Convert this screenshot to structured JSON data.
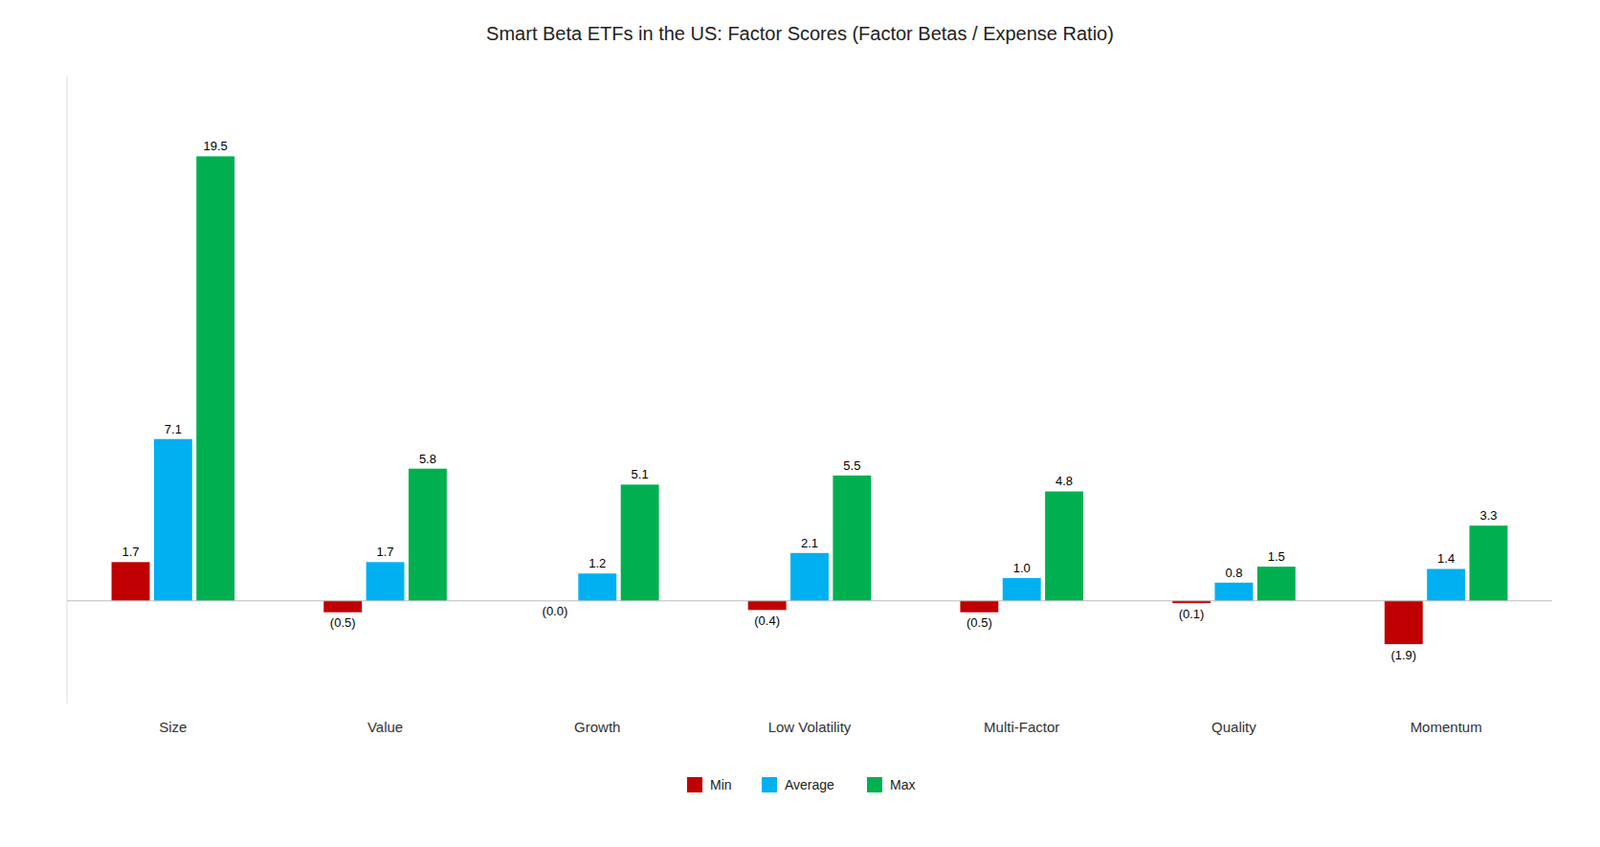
{
  "chart_data": {
    "type": "bar",
    "title": "Smart Beta ETFs in the US: Factor Scores (Factor Betas / Expense Ratio)",
    "categories": [
      "Size",
      "Value",
      "Growth",
      "Low Volatility",
      "Multi-Factor",
      "Quality",
      "Momentum"
    ],
    "series": [
      {
        "name": "Min",
        "color": "#C00000",
        "values": [
          1.7,
          -0.5,
          -0.0,
          -0.4,
          -0.5,
          -0.1,
          -1.9
        ],
        "value_labels": [
          "1.7",
          "(0.5)",
          "(0.0)",
          "(0.4)",
          "(0.5)",
          "(0.1)",
          "(1.9)"
        ]
      },
      {
        "name": "Average",
        "color": "#00B0F0",
        "values": [
          7.1,
          1.7,
          1.2,
          2.1,
          1.0,
          0.8,
          1.4
        ],
        "value_labels": [
          "7.1",
          "1.7",
          "1.2",
          "2.1",
          "1.0",
          "0.8",
          "1.4"
        ]
      },
      {
        "name": "Max",
        "color": "#00B050",
        "values": [
          19.5,
          5.8,
          5.1,
          5.5,
          4.8,
          1.5,
          3.3
        ],
        "value_labels": [
          "19.5",
          "5.8",
          "5.1",
          "5.5",
          "4.8",
          "1.5",
          "3.3"
        ]
      }
    ],
    "ylim": [
      -4.5,
      23.0
    ],
    "grid": false,
    "legend": "bottom",
    "data_labels": true,
    "tick_labels": "x"
  }
}
